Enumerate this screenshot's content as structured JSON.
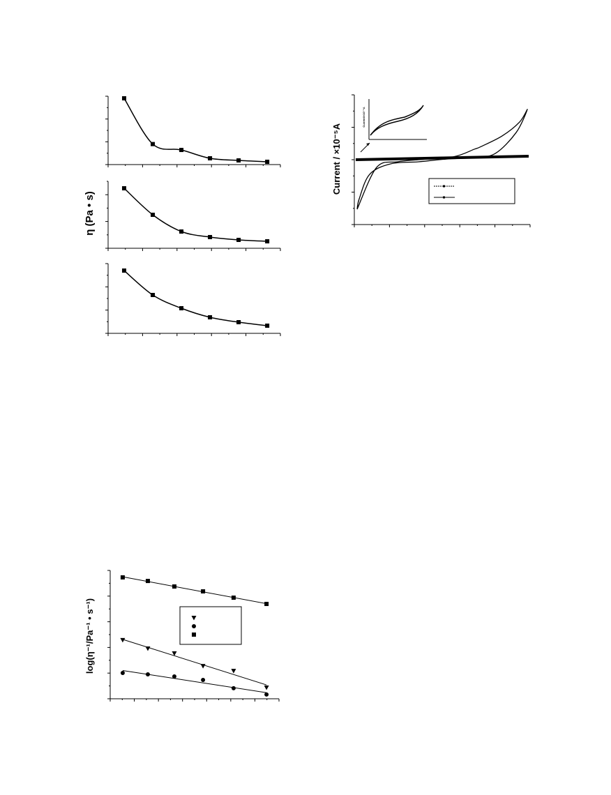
{
  "chart_data": [
    {
      "type": "line",
      "y_label": "η (Pa • s)",
      "marker": "square",
      "smooth": true,
      "x": [
        1,
        2,
        3,
        4,
        5,
        6
      ],
      "xlim": [
        0.44,
        6.46
      ],
      "ylim": [
        0,
        100
      ],
      "series": [
        {
          "color": "#000000",
          "values": [
            97,
            30,
            21.4,
            9.2,
            6.1,
            4.1
          ]
        }
      ]
    },
    {
      "type": "line",
      "marker": "square",
      "smooth": true,
      "x": [
        1,
        2,
        3,
        4,
        5,
        6
      ],
      "xlim": [
        0.44,
        6.46
      ],
      "ylim": [
        0,
        100
      ],
      "series": [
        {
          "color": "#000000",
          "values": [
            89.6,
            50,
            25,
            16.7,
            12.5,
            10.4
          ]
        }
      ]
    },
    {
      "type": "line",
      "marker": "square",
      "smooth": true,
      "x": [
        1,
        2,
        3,
        4,
        5,
        6
      ],
      "xlim": [
        0.44,
        6.46
      ],
      "ylim": [
        0,
        100
      ],
      "series": [
        {
          "color": "#000000",
          "values": [
            90,
            55,
            36,
            23,
            16,
            11
          ]
        }
      ]
    },
    {
      "type": "cv",
      "y_label": "Current / ×10⁻⁵A",
      "inset_label": "Current/×10⁻⁵A",
      "xlim": [
        0,
        100
      ],
      "ylim": [
        0,
        100
      ],
      "series": [
        {
          "color": "#000000",
          "width": 4,
          "x": [
            0.8,
            99.2
          ],
          "values": [
            50,
            52.7
          ]
        },
        {
          "color": "#000000",
          "width": 1.3,
          "x": [
            1.6,
            12.7,
            24.6,
            36.5,
            56.3,
            68.3,
            72.2,
            84.1,
            94,
            98.4,
            92.1,
            80.2,
            68.3,
            52.4,
            36.5,
            20.6,
            8.7,
            2.8,
            1.6
          ],
          "values": [
            11.8,
            44.1,
            48.4,
            50,
            52.2,
            58.1,
            60.2,
            68.3,
            79,
            88.7,
            71,
            54.8,
            51.6,
            50.5,
            48.4,
            46.8,
            38.7,
            19.9,
            11.8
          ]
        }
      ]
    },
    {
      "type": "scatter-fit",
      "y_label": "log(η⁻¹/Pa⁻¹ • s⁻¹)",
      "x": [
        7.4,
        22.3,
        38,
        55,
        73.1,
        92.6
      ],
      "xlim": [
        0,
        100
      ],
      "ylim": [
        0,
        100
      ],
      "series": [
        {
          "color": "#000000",
          "marker": "triangle",
          "values": [
            45.7,
            39.1,
            35.3,
            25.5,
            21.7,
            8.7
          ]
        },
        {
          "color": "#000000",
          "marker": "circle",
          "values": [
            20.1,
            19,
            17.4,
            14.7,
            8.2,
            3.3
          ]
        },
        {
          "color": "#000000",
          "marker": "square",
          "values": [
            94.6,
            91.8,
            87.5,
            83.7,
            78.8,
            73.9
          ]
        }
      ]
    }
  ]
}
